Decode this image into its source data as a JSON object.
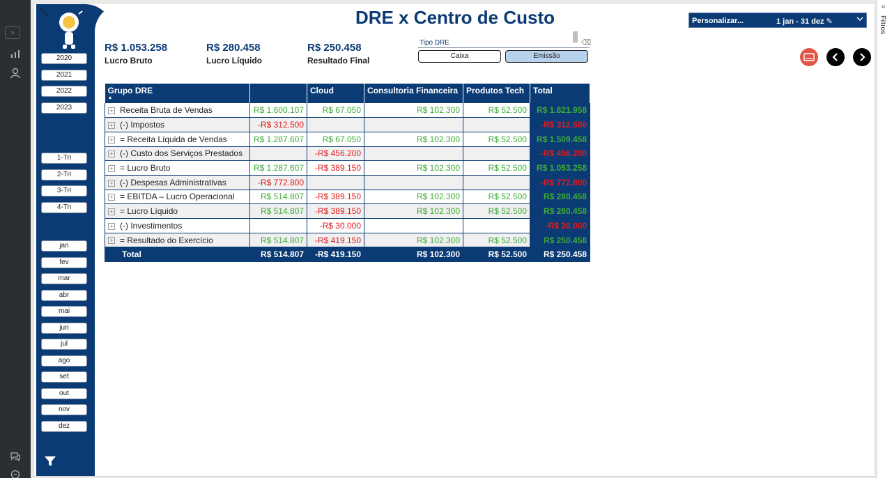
{
  "rail": {
    "expand_icon": "chevron-right-icon",
    "icons": [
      "bar-chart-icon",
      "user-icon",
      "chat-icon",
      "feedback-icon"
    ]
  },
  "report": {
    "title": "DRE x Centro de Custo"
  },
  "kpis": [
    {
      "value": "R$ 1.053.258",
      "label": "Lucro Bruto"
    },
    {
      "value": "R$ 280.458",
      "label": "Lucro Líquido"
    },
    {
      "value": "R$ 250.458",
      "label": "Resultado Final"
    }
  ],
  "tipo_dre": {
    "label": "Tipo DRE",
    "options": [
      "Caixa",
      "Emissão"
    ],
    "selected": "Emissão"
  },
  "date_slicer": {
    "prefix": "Personalizar...",
    "range": "1 jan - 31 dez ✎"
  },
  "filters_pane": {
    "label": "Filtros",
    "collapse": "«"
  },
  "slicers": {
    "years": [
      "2020",
      "2021",
      "2022",
      "2023"
    ],
    "quarters": [
      "1-Tri",
      "2-Tri",
      "3-Tri",
      "4-Tri"
    ],
    "months": [
      "jan",
      "fev",
      "mar",
      "abr",
      "mai",
      "jun",
      "jul",
      "ago",
      "set",
      "out",
      "nov",
      "dez"
    ]
  },
  "nav": {
    "doc": "▭",
    "prev": "‹",
    "next": "›"
  },
  "matrix": {
    "headers": [
      "Grupo DRE",
      "",
      "Cloud",
      "Consultoria Financeira",
      "Produtos Tech",
      "Total"
    ],
    "sort_indicator": "▲",
    "rows": [
      {
        "label": "Receita Bruta de Vendas",
        "cells": [
          "R$ 1.600.107",
          "R$ 67.050",
          "R$ 102.300",
          "R$ 52.500",
          "R$ 1.821.958"
        ],
        "signs": [
          "pos",
          "pos",
          "pos",
          "pos",
          "pos"
        ]
      },
      {
        "label": "(-) Impostos",
        "cells": [
          "-R$ 312.500",
          "",
          "",
          "",
          "-R$ 312.500"
        ],
        "signs": [
          "neg",
          "",
          "",
          "",
          "neg"
        ]
      },
      {
        "label": "= Receita Líquida de Vendas",
        "cells": [
          "R$ 1.287.607",
          "R$ 67.050",
          "R$ 102.300",
          "R$ 52.500",
          "R$ 1.509.458"
        ],
        "signs": [
          "pos",
          "pos",
          "pos",
          "pos",
          "pos"
        ]
      },
      {
        "label": "(-) Custo dos Serviços Prestados",
        "cells": [
          "",
          "-R$ 456.200",
          "",
          "",
          "-R$ 456.200"
        ],
        "signs": [
          "",
          "neg",
          "",
          "",
          "neg"
        ]
      },
      {
        "label": "= Lucro Bruto",
        "cells": [
          "R$ 1.287.607",
          "-R$ 389.150",
          "R$ 102.300",
          "R$ 52.500",
          "R$ 1.053.258"
        ],
        "signs": [
          "pos",
          "neg",
          "pos",
          "pos",
          "pos"
        ]
      },
      {
        "label": "(-) Despesas Administrativas",
        "cells": [
          "-R$ 772.800",
          "",
          "",
          "",
          "-R$ 772.800"
        ],
        "signs": [
          "neg",
          "",
          "",
          "",
          "neg"
        ]
      },
      {
        "label": "= EBITDA – Lucro Operacional",
        "cells": [
          "R$ 514.807",
          "-R$ 389.150",
          "R$ 102.300",
          "R$ 52.500",
          "R$ 280.458"
        ],
        "signs": [
          "pos",
          "neg",
          "pos",
          "pos",
          "pos"
        ]
      },
      {
        "label": "= Lucro Líquido",
        "cells": [
          "R$ 514.807",
          "-R$ 389.150",
          "R$ 102.300",
          "R$ 52.500",
          "R$ 280.458"
        ],
        "signs": [
          "pos",
          "neg",
          "pos",
          "pos",
          "pos"
        ]
      },
      {
        "label": "(-) Investimentos",
        "cells": [
          "",
          "-R$ 30.000",
          "",
          "",
          "-R$ 30.000"
        ],
        "signs": [
          "",
          "neg",
          "",
          "",
          "neg"
        ]
      },
      {
        "label": "= Resultado do Exercício",
        "cells": [
          "R$ 514.807",
          "-R$ 419.150",
          "R$ 102.300",
          "R$ 52.500",
          "R$ 250.458"
        ],
        "signs": [
          "pos",
          "neg",
          "pos",
          "pos",
          "pos"
        ]
      }
    ],
    "total": {
      "label": "Total",
      "cells": [
        "R$ 514.807",
        "-R$ 419.150",
        "R$ 102.300",
        "R$ 52.500",
        "R$ 250.458"
      ],
      "signs": [
        "pos",
        "neg",
        "pos",
        "pos",
        "pos"
      ]
    }
  },
  "colors": {
    "brand": "#0b3b75",
    "positive": "#3faa38",
    "negative": "#e21b1b"
  }
}
